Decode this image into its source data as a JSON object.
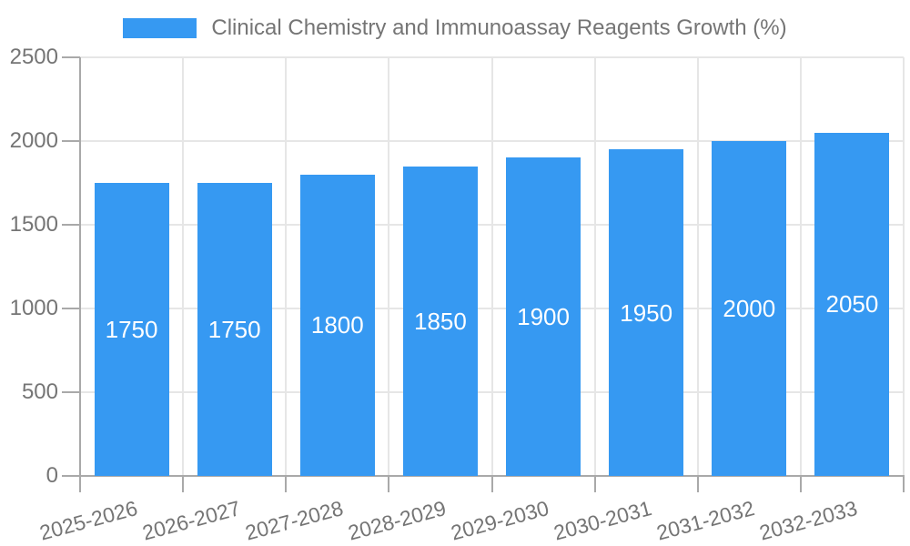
{
  "chart_data": {
    "type": "bar",
    "title": "Clinical Chemistry and Immunoassay Reagents Growth (%)",
    "legend_position": "top",
    "categories": [
      "2025-2026",
      "2026-2027",
      "2027-2028",
      "2028-2029",
      "2029-2030",
      "2030-2031",
      "2031-2032",
      "2032-2033"
    ],
    "series": [
      {
        "name": "Clinical Chemistry and Immunoassay Reagents Growth (%)",
        "values": [
          1750,
          1750,
          1800,
          1850,
          1900,
          1950,
          2000,
          2050
        ]
      }
    ],
    "value_labels": [
      "1750",
      "1750",
      "1800",
      "1850",
      "1900",
      "1950",
      "2000",
      "2050"
    ],
    "xlabel": "",
    "ylabel": "",
    "ylim": [
      0,
      2500
    ],
    "yticks": [
      0,
      500,
      1000,
      1500,
      2000,
      2500
    ],
    "grid": true,
    "colors": {
      "bar": "#3699f2",
      "grid": "#e6e6e6",
      "axis": "#a9a9a9",
      "text": "#757575",
      "value_text": "#ffffff",
      "background": "#ffffff"
    }
  }
}
